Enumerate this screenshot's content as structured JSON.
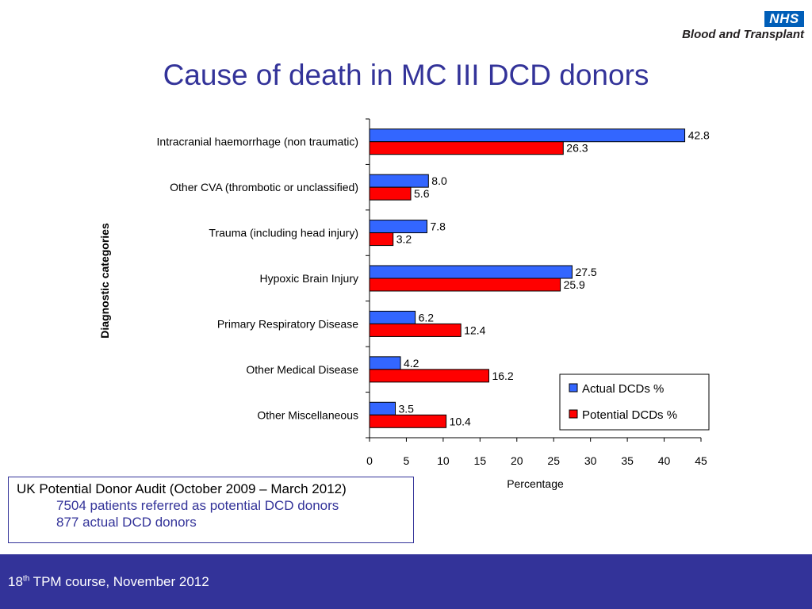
{
  "logo": {
    "badge": "NHS",
    "text": "Blood and Transplant"
  },
  "title": "Cause of death in MC III DCD donors",
  "chart_data": {
    "type": "bar",
    "orientation": "horizontal",
    "categories": [
      "Intracranial haemorrhage (non traumatic)",
      "Other CVA (thrombotic or unclassified)",
      "Trauma (including head injury)",
      "Hypoxic Brain Injury",
      "Primary Respiratory Disease",
      "Other Medical Disease",
      "Other Miscellaneous"
    ],
    "series": [
      {
        "name": "Actual DCDs %",
        "color": "#3366ff",
        "values": [
          42.8,
          8.0,
          7.8,
          27.5,
          6.2,
          4.2,
          3.5
        ]
      },
      {
        "name": "Potential DCDs %",
        "color": "#ff0000",
        "values": [
          26.3,
          5.6,
          3.2,
          25.9,
          12.4,
          16.2,
          10.4
        ]
      }
    ],
    "xlabel": "Percentage",
    "ylabel": "Diagnostic categories",
    "xlim": [
      0,
      45
    ],
    "xticks": [
      0,
      5,
      10,
      15,
      20,
      25,
      30,
      35,
      40,
      45
    ],
    "grid": false,
    "legend": "bottom-right"
  },
  "audit": {
    "heading": "UK Potential Donor Audit (October 2009 – March 2012)",
    "line1": "7504 patients referred as potential DCD donors",
    "line2": "877 actual DCD donors"
  },
  "footer": {
    "prefix": "18",
    "sup": "th",
    "text": " TPM course, November 2012"
  }
}
